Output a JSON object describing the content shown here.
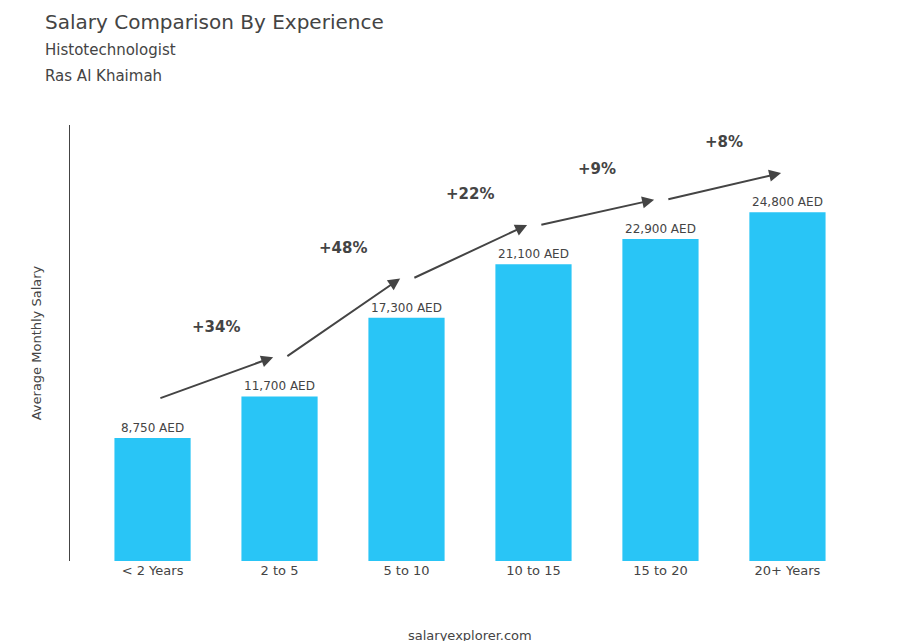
{
  "chart_data": {
    "type": "bar",
    "title": "Salary Comparison By Experience",
    "subtitle": [
      "Histotechnologist",
      "Ras Al Khaimah"
    ],
    "ylabel": "Average Monthly Salary",
    "categories": [
      "< 2 Years",
      "2 to 5",
      "5 to 10",
      "10 to 15",
      "15 to 20",
      "20+ Years"
    ],
    "values": [
      8750,
      11700,
      17300,
      21100,
      22900,
      24800
    ],
    "value_labels": [
      "8,750 AED",
      "11,700 AED",
      "17,300 AED",
      "21,100 AED",
      "22,900 AED",
      "24,800 AED"
    ],
    "data_labels": true,
    "color": "#29c5f6",
    "ylim": [
      0,
      31000
    ],
    "grid": false,
    "tick_labels": "x",
    "annotations": [
      {
        "text": "+34%",
        "from": "< 2 Years",
        "to": "2 to 5"
      },
      {
        "text": "+48%",
        "from": "2 to 5",
        "to": "5 to 10"
      },
      {
        "text": "+22%",
        "from": "5 to 10",
        "to": "10 to 15"
      },
      {
        "text": "+9%",
        "from": "10 to 15",
        "to": "15 to 20"
      },
      {
        "text": "+8%",
        "from": "15 to 20",
        "to": "20+ Years"
      },
      {
        "text": "salaryexplorer.com"
      }
    ]
  }
}
